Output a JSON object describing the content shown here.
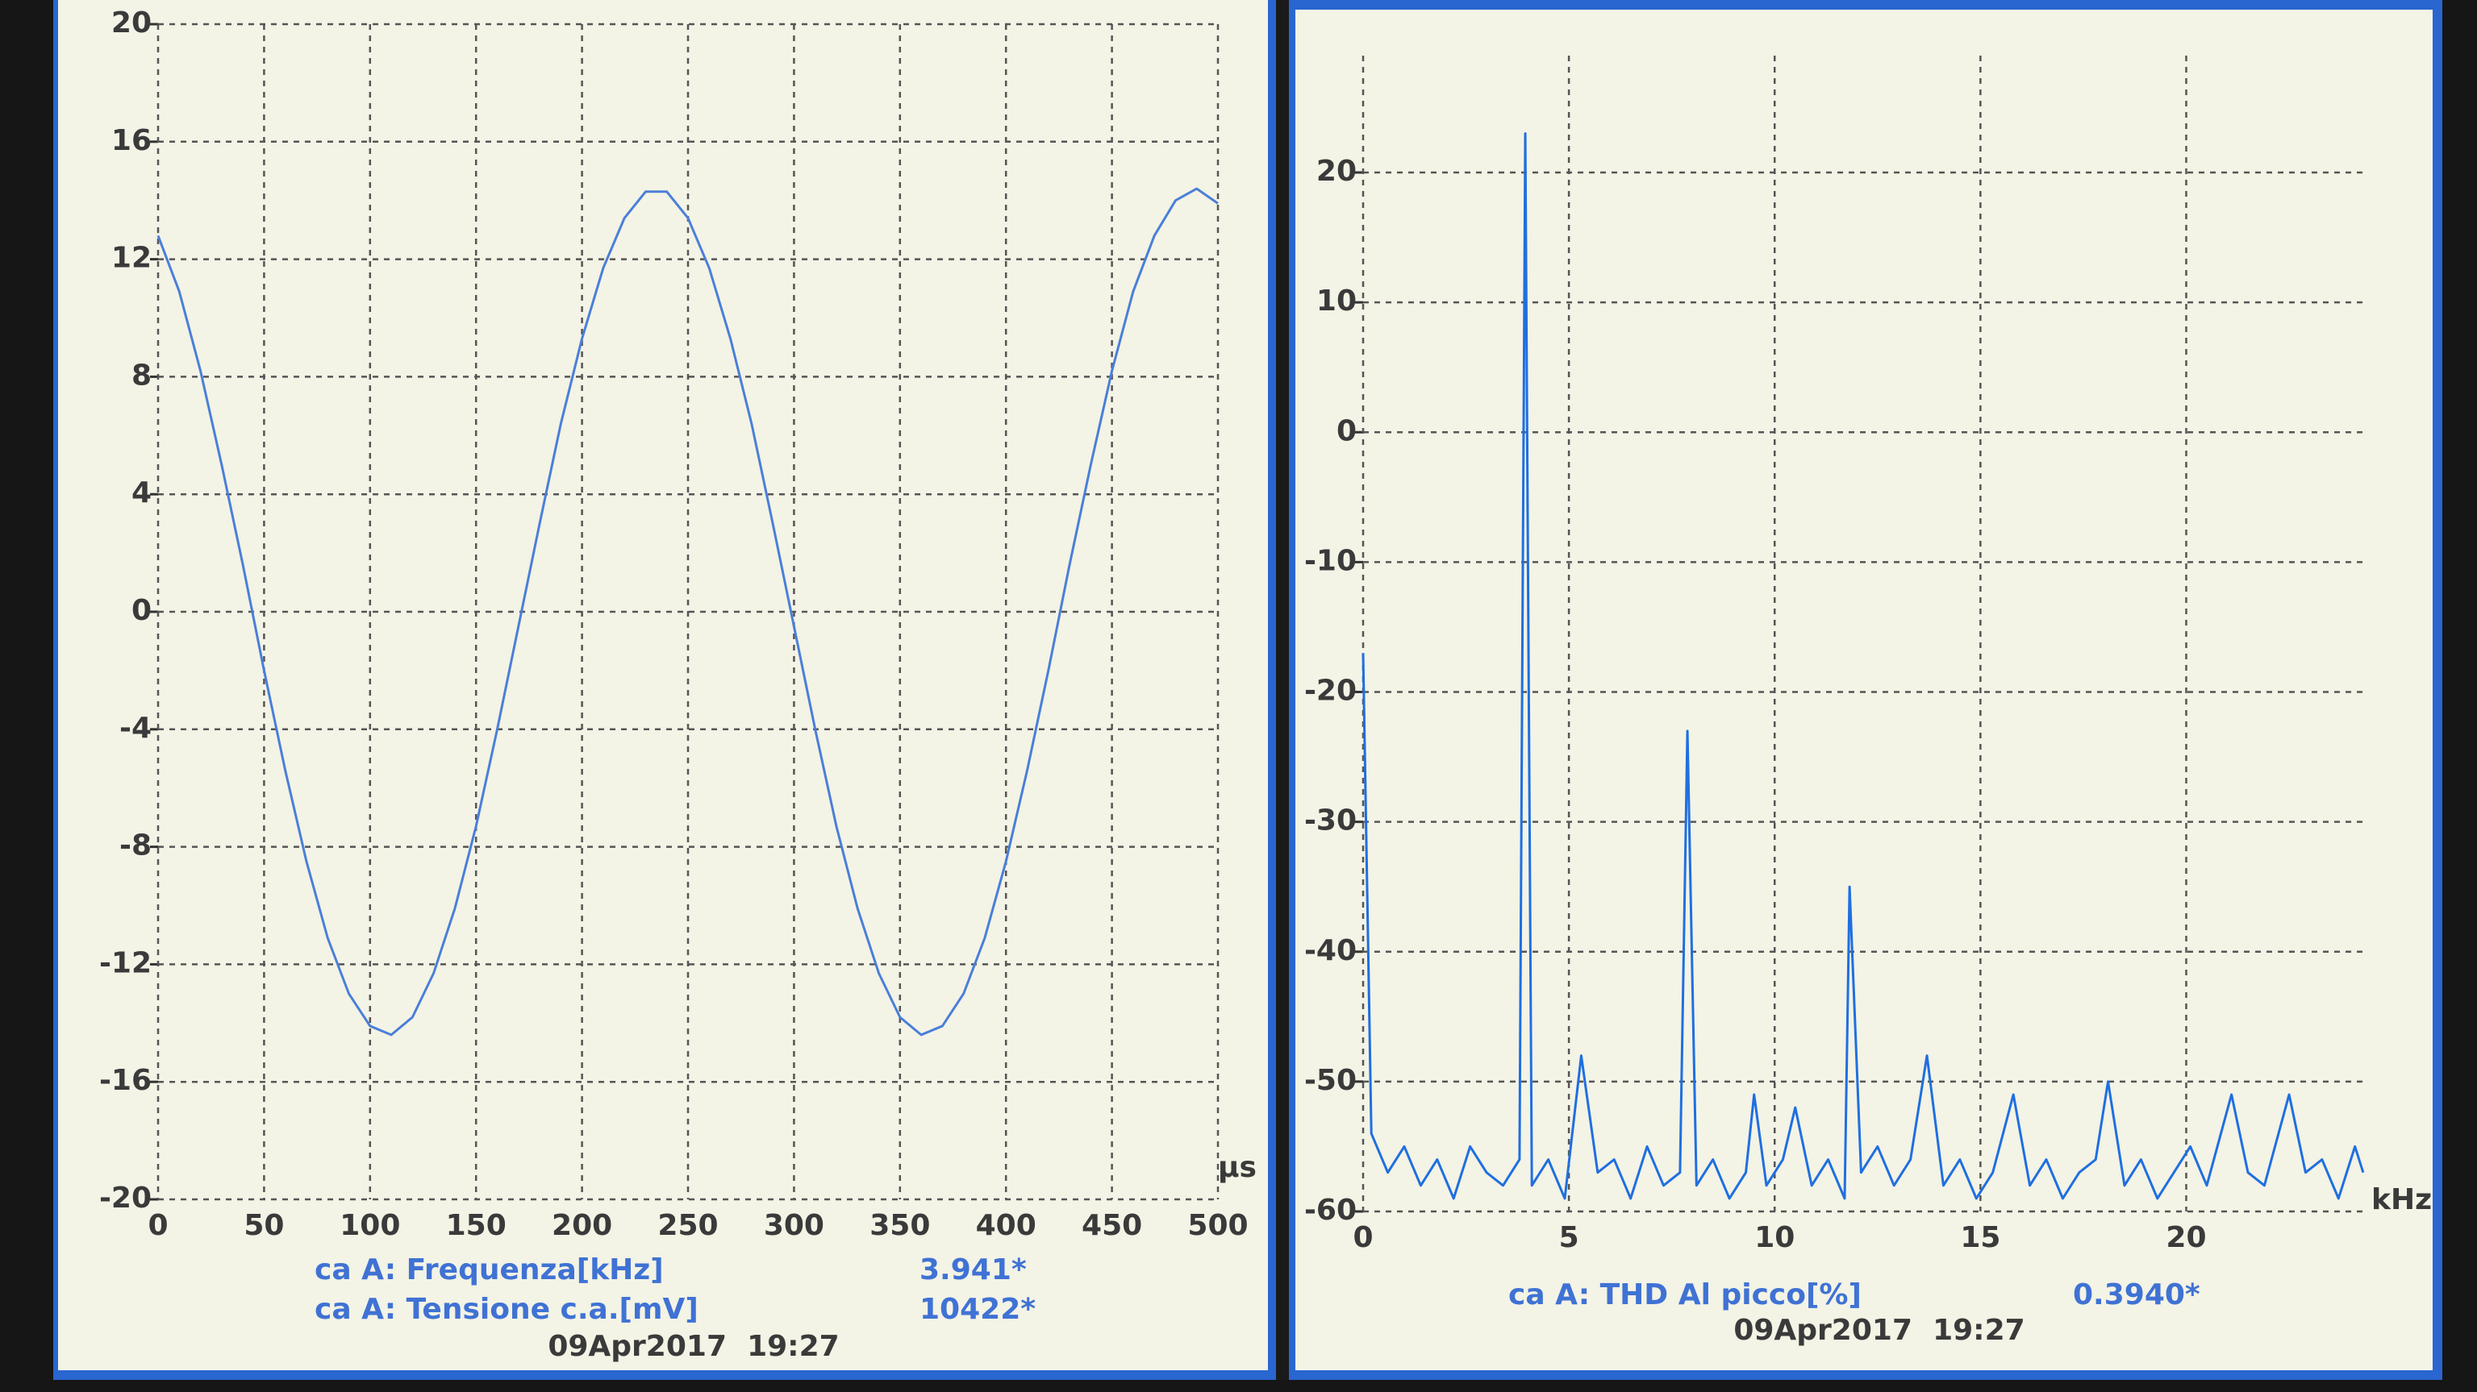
{
  "chart_data": [
    {
      "type": "line",
      "x": [
        0,
        10,
        20,
        30,
        40,
        50,
        60,
        70,
        80,
        90,
        100,
        110,
        120,
        130,
        140,
        150,
        160,
        170,
        180,
        190,
        200,
        210,
        220,
        230,
        240,
        250,
        260,
        270,
        280,
        290,
        300,
        310,
        320,
        330,
        340,
        350,
        360,
        370,
        380,
        390,
        400,
        410,
        420,
        430,
        440,
        450,
        460,
        470,
        480,
        490,
        500
      ],
      "series": [
        {
          "color": "#4a7fd8",
          "values": [
            12.8,
            10.9,
            8.2,
            5.0,
            1.6,
            -2.0,
            -5.4,
            -8.5,
            -11.1,
            -13.0,
            -14.1,
            -14.4,
            -13.8,
            -12.3,
            -10.1,
            -7.3,
            -4.0,
            -0.5,
            3.0,
            6.4,
            9.3,
            11.7,
            13.4,
            14.3,
            14.3,
            13.4,
            11.7,
            9.3,
            6.4,
            3.0,
            -0.5,
            -4.0,
            -7.3,
            -10.1,
            -12.3,
            -13.8,
            -14.4,
            -14.1,
            -13.0,
            -11.1,
            -8.5,
            -5.4,
            -2.0,
            1.6,
            5.0,
            8.2,
            10.9,
            12.8,
            14.0,
            14.4,
            13.9
          ]
        }
      ],
      "xlim": [
        0,
        500
      ],
      "ylim": [
        -20,
        20
      ],
      "xticks": [
        0,
        50,
        100,
        150,
        200,
        250,
        300,
        350,
        400,
        450,
        500
      ],
      "yticks": [
        -20,
        -16,
        -12,
        -8,
        -4,
        0,
        4,
        8,
        12,
        16,
        20
      ],
      "x_unit": "µs",
      "grid": true,
      "readouts": [
        {
          "label": "ca A: Frequenza[kHz]",
          "value": "3.941*"
        },
        {
          "label": "ca A: Tensione c.a.[mV]",
          "value": "10422*"
        }
      ],
      "timestamp": "09Apr2017  19:27"
    },
    {
      "type": "line",
      "x": [
        0,
        0.2,
        0.6,
        1.0,
        1.4,
        1.8,
        2.2,
        2.6,
        3.0,
        3.4,
        3.8,
        3.94,
        4.1,
        4.5,
        4.9,
        5.3,
        5.7,
        6.1,
        6.5,
        6.9,
        7.3,
        7.7,
        7.88,
        8.1,
        8.5,
        8.9,
        9.3,
        9.5,
        9.8,
        10.2,
        10.5,
        10.9,
        11.3,
        11.7,
        11.82,
        12.1,
        12.5,
        12.9,
        13.3,
        13.7,
        14.1,
        14.5,
        14.9,
        15.3,
        15.8,
        16.2,
        16.6,
        17.0,
        17.4,
        17.8,
        18.1,
        18.5,
        18.9,
        19.3,
        19.7,
        20.1,
        20.5,
        21.1,
        21.5,
        21.9,
        22.5,
        22.9,
        23.3,
        23.7,
        24.1,
        24.3
      ],
      "series": [
        {
          "color": "#1f6fe0",
          "values": [
            -17,
            -54,
            -57,
            -55,
            -58,
            -56,
            -59,
            -55,
            -57,
            -58,
            -56,
            23,
            -58,
            -56,
            -59,
            -48,
            -57,
            -56,
            -59,
            -55,
            -58,
            -57,
            -23,
            -58,
            -56,
            -59,
            -57,
            -51,
            -58,
            -56,
            -52,
            -58,
            -56,
            -59,
            -35,
            -57,
            -55,
            -58,
            -56,
            -48,
            -58,
            -56,
            -59,
            -57,
            -51,
            -58,
            -56,
            -59,
            -57,
            -56,
            -50,
            -58,
            -56,
            -59,
            -57,
            -55,
            -58,
            -51,
            -57,
            -58,
            -51,
            -57,
            -56,
            -59,
            -55,
            -57
          ]
        }
      ],
      "xlim": [
        0,
        24.4
      ],
      "ylim": [
        -60,
        29
      ],
      "xticks": [
        0,
        5,
        10,
        15,
        20
      ],
      "yticks": [
        -60,
        -50,
        -40,
        -30,
        -20,
        -10,
        0,
        10,
        20
      ],
      "x_unit": "kHz",
      "grid": true,
      "readouts": [
        {
          "label": "ca A: THD Al picco[%]",
          "value": "0.3940*"
        }
      ],
      "timestamp": "09Apr2017  19:27"
    }
  ]
}
